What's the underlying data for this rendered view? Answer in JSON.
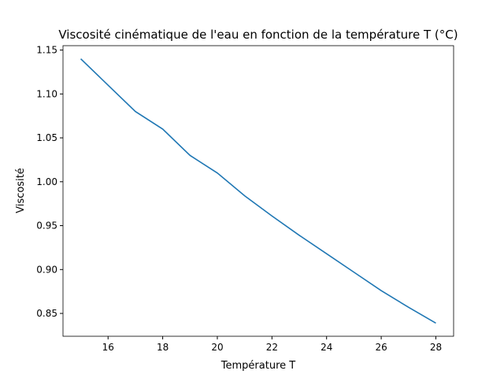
{
  "chart_data": {
    "type": "line",
    "title": "Viscosité cinématique de l'eau en fonction de la température T (°C)",
    "x_label": "Température T",
    "y_label": "Viscosité",
    "x": [
      15,
      16,
      17,
      18,
      19,
      20,
      21,
      22,
      23,
      24,
      25,
      26,
      27,
      28
    ],
    "series": [
      {
        "color": "#1f77b4",
        "values": [
          1.14,
          1.11,
          1.08,
          1.06,
          1.03,
          1.01,
          0.984,
          0.961,
          0.939,
          0.918,
          0.897,
          0.876,
          0.857,
          0.839
        ]
      }
    ],
    "xlim": [
      14.35,
      28.65
    ],
    "xticks": [
      16,
      18,
      20,
      22,
      24,
      26,
      28
    ],
    "ylim": [
      0.824,
      1.155
    ],
    "yticks": [
      0.85,
      {
        "value": 0.9,
        "label": "0.90"
      },
      0.95,
      {
        "value": 1.0,
        "label": "1.00"
      },
      1.05,
      {
        "value": 1.1,
        "label": "1.10"
      },
      1.15
    ],
    "grid": false
  }
}
